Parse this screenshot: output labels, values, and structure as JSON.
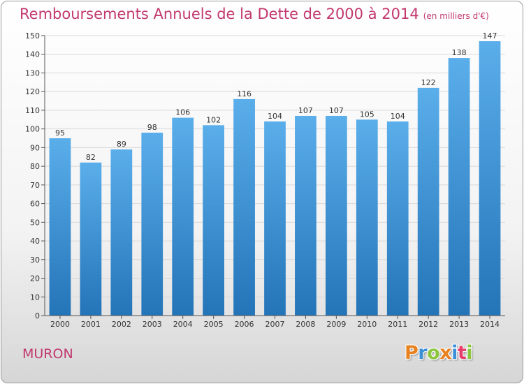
{
  "header": {
    "title": "Remboursements Annuels de la Dette de 2000 à 2014",
    "unit": "(en milliers d'€)"
  },
  "footer": {
    "place": "MURON",
    "brand_letters": [
      "P",
      "r",
      "o",
      "x",
      "i",
      "t",
      "i"
    ],
    "brand_colors": [
      "#e8821e",
      "#3a8fd6",
      "#8cc63f",
      "#e8821e",
      "#3a8fd6",
      "#e83e6c",
      "#8cc63f"
    ]
  },
  "colors": {
    "title": "#c2386e",
    "bar_top": "#5aaeea",
    "bar_bottom": "#2474b8",
    "grid": "#d8d8d8"
  },
  "chart_data": {
    "type": "bar",
    "title": "Remboursements Annuels de la Dette de 2000 à 2014",
    "subtitle": "(en milliers d'€)",
    "xlabel": "",
    "ylabel": "",
    "categories": [
      "2000",
      "2001",
      "2002",
      "2003",
      "2004",
      "2005",
      "2006",
      "2007",
      "2008",
      "2009",
      "2010",
      "2011",
      "2012",
      "2013",
      "2014"
    ],
    "values": [
      95,
      82,
      89,
      98,
      106,
      102,
      116,
      104,
      107,
      107,
      105,
      104,
      122,
      138,
      147
    ],
    "ylim": [
      0,
      150
    ],
    "yticks": [
      0,
      10,
      20,
      30,
      40,
      50,
      60,
      70,
      80,
      90,
      100,
      110,
      120,
      130,
      140,
      150
    ],
    "grid": true,
    "legend": "none"
  }
}
